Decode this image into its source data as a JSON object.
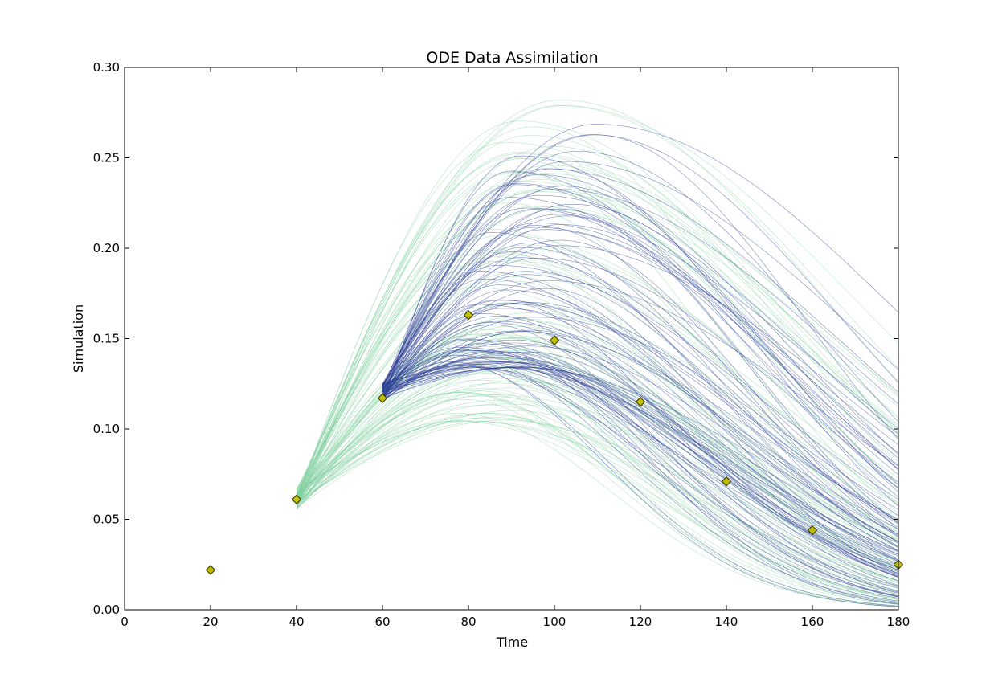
{
  "chart_data": {
    "type": "line",
    "title": "ODE Data Assimilation",
    "xlabel": "Time",
    "ylabel": "Simulation",
    "xlim": [
      0,
      180
    ],
    "ylim": [
      0,
      0.3
    ],
    "xticks": [
      0,
      20,
      40,
      60,
      80,
      100,
      120,
      140,
      160,
      180
    ],
    "xtick_labels": [
      "0",
      "20",
      "40",
      "60",
      "80",
      "100",
      "120",
      "140",
      "160",
      "180"
    ],
    "yticks": [
      0,
      0.05,
      0.1,
      0.15,
      0.2,
      0.25,
      0.3
    ],
    "ytick_labels": [
      "0.00",
      "0.05",
      "0.10",
      "0.15",
      "0.20",
      "0.25",
      "0.30"
    ],
    "grid": false,
    "legend": "none",
    "colors": {
      "prior_ensemble": "#7fcf9f",
      "posterior_ensemble": "#2c3e94",
      "observations": "#bfbf00",
      "observation_edge": "#333300"
    },
    "observations": {
      "x": [
        20,
        40,
        60,
        80,
        100,
        120,
        140,
        160,
        180
      ],
      "y": [
        0.022,
        0.061,
        0.117,
        0.163,
        0.149,
        0.115,
        0.071,
        0.044,
        0.025
      ]
    },
    "prior_ensemble": {
      "t_start": 40,
      "t_end": 180,
      "y_start_range": [
        0.055,
        0.067
      ],
      "members": 100,
      "peak_time_range": [
        75,
        105
      ],
      "peak_value_range": [
        0.104,
        0.285
      ]
    },
    "posterior_ensemble": {
      "t_start": 60,
      "t_end": 180,
      "y_start_range": [
        0.115,
        0.125
      ],
      "members": 100,
      "peak_time_range": [
        75,
        112
      ],
      "peak_value_range": [
        0.134,
        0.271
      ]
    }
  }
}
